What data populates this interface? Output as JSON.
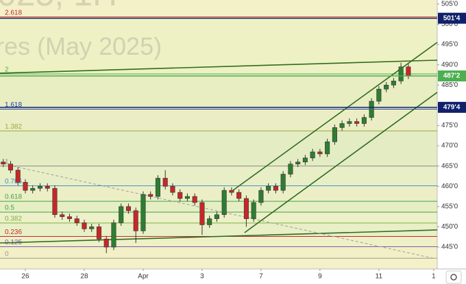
{
  "chart_data": {
    "type": "candlestick",
    "watermark": [
      "025, 1H",
      "res (May 2025)"
    ],
    "xlim": [
      -0.86,
      13.98
    ],
    "xticks": [
      {
        "value": 0,
        "label": "26"
      },
      {
        "value": 2,
        "label": "28"
      },
      {
        "value": 4,
        "label": "Apr"
      },
      {
        "value": 6,
        "label": "3"
      },
      {
        "value": 8,
        "label": "7"
      },
      {
        "value": 10,
        "label": "9"
      },
      {
        "value": 12,
        "label": "11"
      },
      {
        "value": 13.86,
        "label": "1"
      }
    ],
    "ylim": [
      439.6,
      506.0
    ],
    "yticks": [
      {
        "value": 445,
        "label": "445'0"
      },
      {
        "value": 450,
        "label": "450'0"
      },
      {
        "value": 455,
        "label": "455'0"
      },
      {
        "value": 460,
        "label": "460'0"
      },
      {
        "value": 465,
        "label": "465'0"
      },
      {
        "value": 470,
        "label": "470'0"
      },
      {
        "value": 475,
        "label": "475'0"
      },
      {
        "value": 480,
        "label": "480'0"
      },
      {
        "value": 485,
        "label": "485'0"
      },
      {
        "value": 490,
        "label": "490'0"
      },
      {
        "value": 495,
        "label": "495'0"
      },
      {
        "value": 500,
        "label": "500'0"
      },
      {
        "value": 505,
        "label": "505'0"
      }
    ],
    "up_color": "#2e7d32",
    "down_color": "#c62828",
    "x": [
      -0.75,
      -0.5,
      -0.25,
      0,
      0.25,
      0.5,
      0.75,
      1,
      1.25,
      1.5,
      1.75,
      2,
      2.25,
      2.5,
      2.75,
      3,
      3.25,
      3.5,
      3.75,
      4,
      4.25,
      4.5,
      4.75,
      5,
      5.25,
      5.5,
      5.75,
      6,
      6.25,
      6.5,
      6.75,
      7,
      7.25,
      7.5,
      7.75,
      8,
      8.25,
      8.5,
      8.75,
      9,
      9.25,
      9.5,
      9.75,
      10,
      10.25,
      10.5,
      10.75,
      11,
      11.25,
      11.5,
      11.75,
      12,
      12.25,
      12.5,
      12.75,
      13
    ],
    "candles": [
      [
        466,
        466.75,
        464.75,
        465.5
      ],
      [
        465.5,
        466.25,
        463.25,
        464
      ],
      [
        464,
        464.75,
        460.25,
        461
      ],
      [
        461,
        461.75,
        458.25,
        459
      ],
      [
        459,
        460.25,
        458.25,
        459.5
      ],
      [
        459.5,
        460.75,
        458.75,
        460
      ],
      [
        460,
        460.75,
        458.75,
        459.5
      ],
      [
        459.5,
        460.25,
        452.25,
        453
      ],
      [
        453,
        453.75,
        451.75,
        452.5
      ],
      [
        452.5,
        453.25,
        451.25,
        452
      ],
      [
        452,
        452.75,
        450.25,
        451
      ],
      [
        451,
        451.75,
        448.75,
        449.5
      ],
      [
        449.5,
        450.75,
        448.75,
        450
      ],
      [
        450,
        450.75,
        446.25,
        447
      ],
      [
        447,
        447.75,
        443.5,
        445
      ],
      [
        445,
        451.75,
        444.25,
        451
      ],
      [
        451,
        455.75,
        450.25,
        455
      ],
      [
        455,
        455.75,
        453.25,
        454
      ],
      [
        454,
        454.75,
        446,
        449
      ],
      [
        449,
        458.75,
        448.25,
        458
      ],
      [
        458,
        458.75,
        456.75,
        457.5
      ],
      [
        457.5,
        462.75,
        456.75,
        462
      ],
      [
        462,
        464,
        459.25,
        460
      ],
      [
        460,
        460.75,
        457.75,
        458.5
      ],
      [
        458.5,
        459.25,
        456.25,
        457
      ],
      [
        457,
        458.25,
        456.25,
        457.5
      ],
      [
        457.5,
        458.25,
        455.25,
        456
      ],
      [
        456,
        456.75,
        448,
        450.5
      ],
      [
        450.5,
        452.75,
        449.75,
        452
      ],
      [
        452,
        453.75,
        451.25,
        453
      ],
      [
        453,
        459.75,
        452.25,
        459
      ],
      [
        459,
        459.75,
        457.75,
        458.5
      ],
      [
        458.5,
        459.25,
        456.25,
        457
      ],
      [
        457,
        457.75,
        450,
        452
      ],
      [
        452,
        456.75,
        451.25,
        456
      ],
      [
        456,
        459.75,
        455.25,
        459
      ],
      [
        459,
        460.75,
        458.25,
        460
      ],
      [
        460,
        460.75,
        458.25,
        459
      ],
      [
        459,
        463.75,
        458.25,
        463
      ],
      [
        463,
        466.25,
        462.25,
        465.5
      ],
      [
        465.5,
        466.75,
        464.75,
        466
      ],
      [
        466,
        467.75,
        465.25,
        467
      ],
      [
        467,
        469.25,
        466.25,
        468.5
      ],
      [
        468.5,
        469.25,
        467.25,
        468
      ],
      [
        468,
        471.75,
        467.25,
        471
      ],
      [
        471,
        475.25,
        470.25,
        474.5
      ],
      [
        474.5,
        476.25,
        473.75,
        475.5
      ],
      [
        475.5,
        476.75,
        474.75,
        476
      ],
      [
        476,
        476.75,
        474.75,
        475.5
      ],
      [
        475.5,
        477.75,
        474.75,
        477
      ],
      [
        477,
        481.75,
        476.25,
        481
      ],
      [
        481,
        484.75,
        480.25,
        484
      ],
      [
        484,
        485.75,
        483.25,
        485
      ],
      [
        485,
        486.75,
        484.25,
        486
      ],
      [
        486,
        490.5,
        485.25,
        489.5
      ],
      [
        489.5,
        490.25,
        486.5,
        487.25
      ]
    ],
    "fib_levels": [
      {
        "label": "0",
        "value": 442.25,
        "color": "#9e9e9e"
      },
      {
        "label": "0.125",
        "value": 445.09,
        "color": "#7b5ea7"
      },
      {
        "label": "0.236",
        "value": 447.62,
        "color": "#c62828"
      },
      {
        "label": "0.382",
        "value": 450.94,
        "color": "#7cb342"
      },
      {
        "label": "0.5",
        "value": 453.63,
        "color": "#43a047"
      },
      {
        "label": "0.618",
        "value": 456.31,
        "color": "#43a047"
      },
      {
        "label": "0.786",
        "value": 460.13,
        "color": "#4a90c2"
      },
      {
        "label": "1",
        "value": 465.0,
        "color": "#8a8a8a"
      },
      {
        "label": "1.382",
        "value": 473.69,
        "color": "#9aa83a"
      },
      {
        "label": "1.618",
        "value": 479.06,
        "color": "#1e3fae"
      },
      {
        "label": "2",
        "value": 487.75,
        "color": "#4caf50"
      },
      {
        "label": "2.618",
        "value": 501.81,
        "color": "#c62828"
      }
    ],
    "price_markers": [
      {
        "value": 501.5,
        "label": "501'4",
        "color": "#10206b"
      },
      {
        "value": 487.25,
        "label": "487'2",
        "color": "#4caf50"
      },
      {
        "value": 479.5,
        "label": "479'4",
        "color": "#10206b"
      }
    ],
    "trendlines": [
      {
        "x": [
          -0.86,
          13.98
        ],
        "y": [
          487.93,
          491.14
        ],
        "color": "#2e6b1e",
        "dash": false
      },
      {
        "x": [
          -0.86,
          13.98
        ],
        "y": [
          446.02,
          449.23
        ],
        "color": "#2e6b1e",
        "dash": false
      },
      {
        "x": [
          7.05,
          13.98
        ],
        "y": [
          459.03,
          495.54
        ],
        "color": "#2e6b1e",
        "dash": false
      },
      {
        "x": [
          7.44,
          13.98
        ],
        "y": [
          448.55,
          483.2
        ],
        "color": "#2e6b1e",
        "dash": false
      },
      {
        "x": [
          -0.4,
          13.91
        ],
        "y": [
          464.95,
          442.13
        ],
        "color": "#9e9e9e",
        "dash": true
      }
    ]
  }
}
